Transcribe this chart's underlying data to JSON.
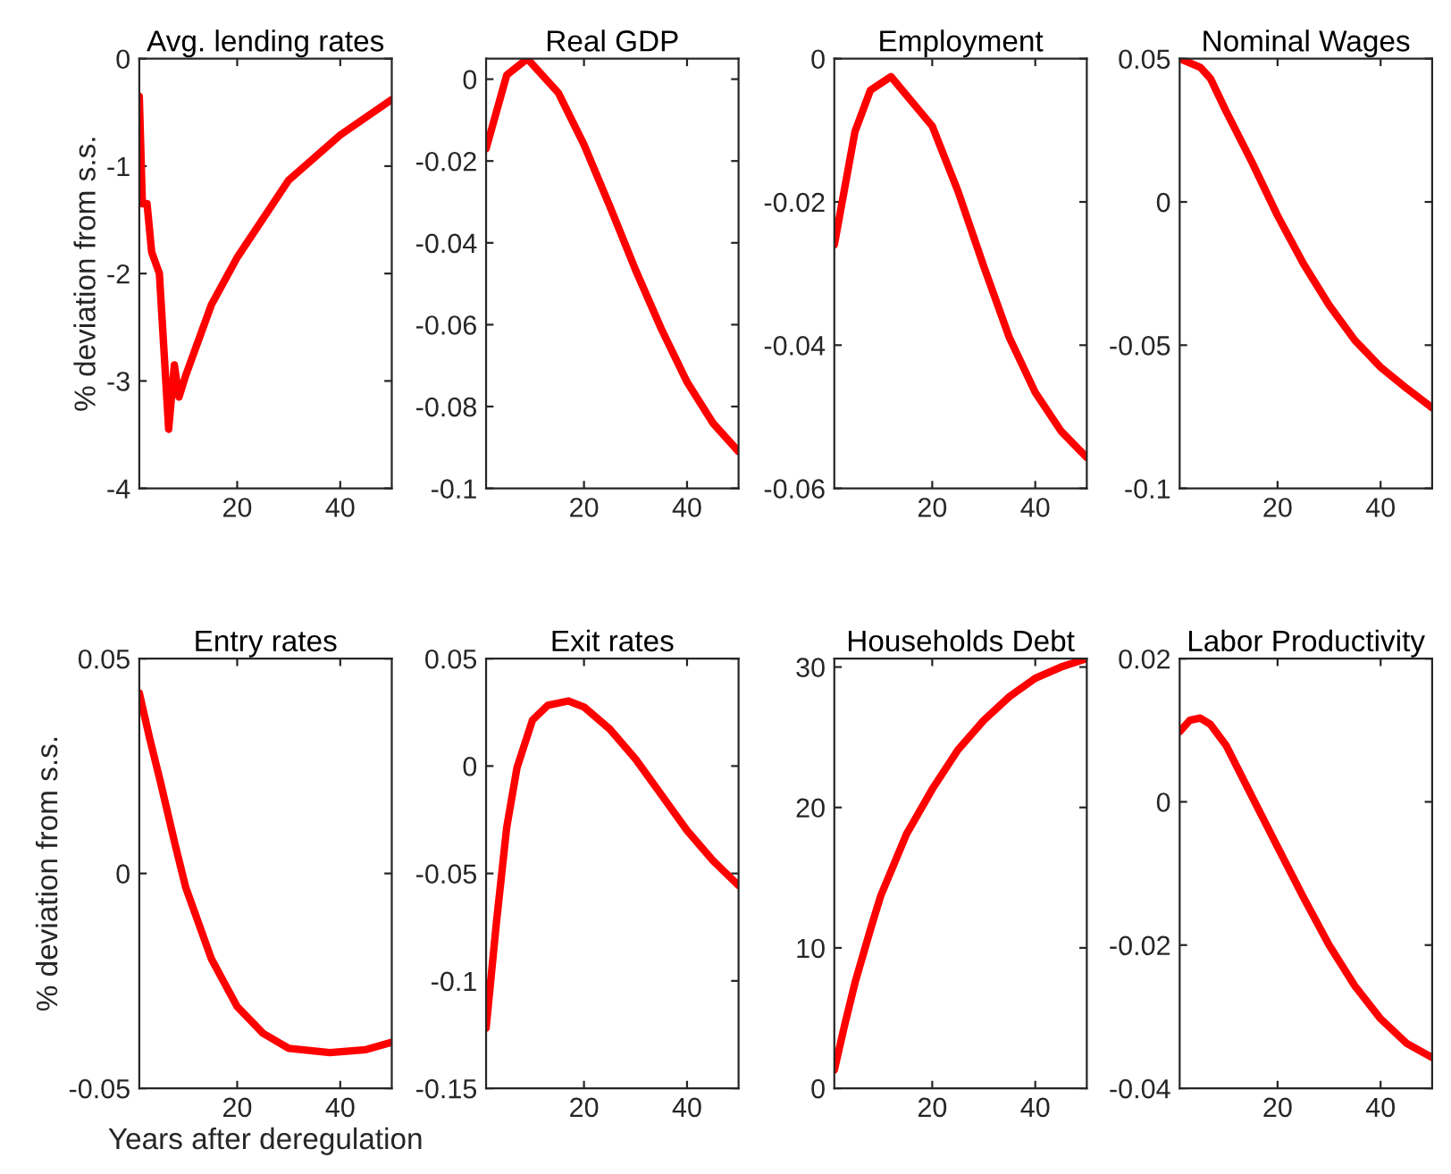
{
  "chart_data": [
    {
      "type": "line",
      "title": "Avg. lending rates",
      "ylabel": "% deviation from s.s.",
      "x": [
        1,
        1.6,
        2.5,
        3.4,
        4.9,
        6.7,
        7.8,
        8.7,
        10,
        15,
        20,
        30,
        40,
        50
      ],
      "series": [
        {
          "color": "#ff0000",
          "values": [
            -0.35,
            -1.35,
            -1.35,
            -1.8,
            -2.0,
            -3.45,
            -2.85,
            -3.15,
            -2.95,
            -2.29,
            -1.85,
            -1.13,
            -0.71,
            -0.38
          ]
        }
      ],
      "xlim": [
        1,
        50
      ],
      "xticks": [
        20,
        40
      ],
      "ylim": [
        -4,
        0
      ],
      "yticks": [
        -4,
        -3,
        -2,
        -1,
        0
      ],
      "grid": false,
      "legend": false
    },
    {
      "type": "line",
      "title": "Real GDP",
      "x": [
        1,
        5,
        9,
        15,
        20,
        25,
        30,
        35,
        40,
        45,
        50
      ],
      "series": [
        {
          "color": "#ff0000",
          "values": [
            -0.017,
            0.001,
            0.005,
            -0.0033,
            -0.016,
            -0.031,
            -0.0466,
            -0.061,
            -0.074,
            -0.084,
            -0.091
          ]
        }
      ],
      "xlim": [
        1,
        50
      ],
      "xticks": [
        20,
        40
      ],
      "ylim": [
        -0.1,
        0.005
      ],
      "yticks": [
        {
          "value": -0.1,
          "label": "-0.1"
        },
        {
          "value": -0.08,
          "label": "-0.08"
        },
        {
          "value": -0.06,
          "label": "-0.06"
        },
        {
          "value": -0.04,
          "label": "-0.04"
        },
        {
          "value": -0.02,
          "label": "-0.02"
        },
        0
      ],
      "grid": false,
      "legend": false
    },
    {
      "type": "line",
      "title": "Employment",
      "x": [
        1,
        5,
        8,
        12,
        20,
        25,
        30,
        35,
        40,
        45,
        50
      ],
      "series": [
        {
          "color": "#ff0000",
          "values": [
            -0.026,
            -0.0102,
            -0.0044,
            -0.0025,
            -0.0094,
            -0.0185,
            -0.029,
            -0.039,
            -0.0466,
            -0.052,
            -0.0557
          ]
        }
      ],
      "xlim": [
        1,
        50
      ],
      "xticks": [
        20,
        40
      ],
      "ylim": [
        -0.06,
        0
      ],
      "yticks": [
        {
          "value": -0.06,
          "label": "-0.06"
        },
        {
          "value": -0.04,
          "label": "-0.04"
        },
        {
          "value": -0.02,
          "label": "-0.02"
        },
        0
      ],
      "grid": false,
      "legend": false
    },
    {
      "type": "line",
      "title": "Nominal Wages",
      "x": [
        1,
        5,
        7,
        10,
        15,
        20,
        25,
        30,
        35,
        40,
        45,
        50
      ],
      "series": [
        {
          "color": "#ff0000",
          "values": [
            0.05,
            0.047,
            0.043,
            0.0317,
            0.014,
            -0.0048,
            -0.0215,
            -0.036,
            -0.0483,
            -0.0577,
            -0.065,
            -0.0719
          ]
        }
      ],
      "xlim": [
        1,
        50
      ],
      "xticks": [
        20,
        40
      ],
      "ylim": [
        -0.1,
        0.05
      ],
      "yticks": [
        {
          "value": -0.1,
          "label": "-0.1"
        },
        {
          "value": -0.05,
          "label": "-0.05"
        },
        0,
        0.05
      ],
      "grid": false,
      "legend": false
    },
    {
      "type": "line",
      "title": "Entry rates",
      "ylabel": "% deviation from s.s.",
      "xlabel": "Years after deregulation",
      "x": [
        1,
        3,
        5,
        8,
        10,
        15,
        20,
        25,
        30,
        38,
        45,
        50
      ],
      "series": [
        {
          "color": "#ff0000",
          "values": [
            0.042,
            0.0315,
            0.0218,
            0.0065,
            -0.0032,
            -0.0199,
            -0.031,
            -0.0372,
            -0.0407,
            -0.0417,
            -0.041,
            -0.0393
          ]
        }
      ],
      "xlim": [
        1,
        50
      ],
      "xticks": [
        20,
        40
      ],
      "ylim": [
        -0.05,
        0.05
      ],
      "yticks": [
        {
          "value": -0.05,
          "label": "-0.05"
        },
        0,
        0.05
      ],
      "grid": false,
      "legend": false
    },
    {
      "type": "line",
      "title": "Exit rates",
      "x": [
        1,
        3,
        5,
        7,
        10,
        13,
        17,
        20,
        25,
        30,
        35,
        40,
        45,
        50
      ],
      "series": [
        {
          "color": "#ff0000",
          "values": [
            -0.122,
            -0.073,
            -0.0286,
            -0.0008,
            0.0214,
            0.0283,
            0.0303,
            0.0275,
            0.0172,
            0.0033,
            -0.0133,
            -0.03,
            -0.0439,
            -0.0556
          ]
        }
      ],
      "xlim": [
        1,
        50
      ],
      "xticks": [
        20,
        40
      ],
      "ylim": [
        -0.15,
        0.05
      ],
      "yticks": [
        {
          "value": -0.15,
          "label": "-0.15"
        },
        {
          "value": -0.1,
          "label": "-0.1"
        },
        {
          "value": -0.05,
          "label": "-0.05"
        },
        0,
        0.05
      ],
      "grid": false,
      "legend": false
    },
    {
      "type": "line",
      "title": "Households Debt",
      "x": [
        1,
        3,
        5,
        8,
        10,
        15,
        20,
        25,
        30,
        35,
        40,
        45,
        50
      ],
      "series": [
        {
          "color": "#ff0000",
          "values": [
            1.3,
            4.5,
            7.5,
            11.3,
            13.7,
            18.1,
            21.3,
            24.1,
            26.2,
            27.9,
            29.2,
            30.0,
            30.6
          ]
        }
      ],
      "xlim": [
        1,
        50
      ],
      "xticks": [
        20,
        40
      ],
      "ylim": [
        0,
        30.6
      ],
      "yticks": [
        0,
        10,
        20,
        30
      ],
      "grid": false,
      "legend": false
    },
    {
      "type": "line",
      "title": "Labor Productivity",
      "x": [
        1,
        3,
        5,
        7,
        10,
        15,
        20,
        25,
        30,
        35,
        40,
        45,
        50
      ],
      "series": [
        {
          "color": "#ff0000",
          "values": [
            0.0098,
            0.0114,
            0.0117,
            0.0108,
            0.0079,
            0.0008,
            -0.0063,
            -0.0133,
            -0.02,
            -0.0257,
            -0.0303,
            -0.0337,
            -0.0357
          ]
        }
      ],
      "xlim": [
        1,
        50
      ],
      "xticks": [
        20,
        40
      ],
      "ylim": [
        -0.04,
        0.02
      ],
      "yticks": [
        {
          "value": -0.04,
          "label": "-0.04"
        },
        {
          "value": -0.02,
          "label": "-0.02"
        },
        0,
        0.02
      ],
      "grid": false,
      "legend": false
    }
  ]
}
